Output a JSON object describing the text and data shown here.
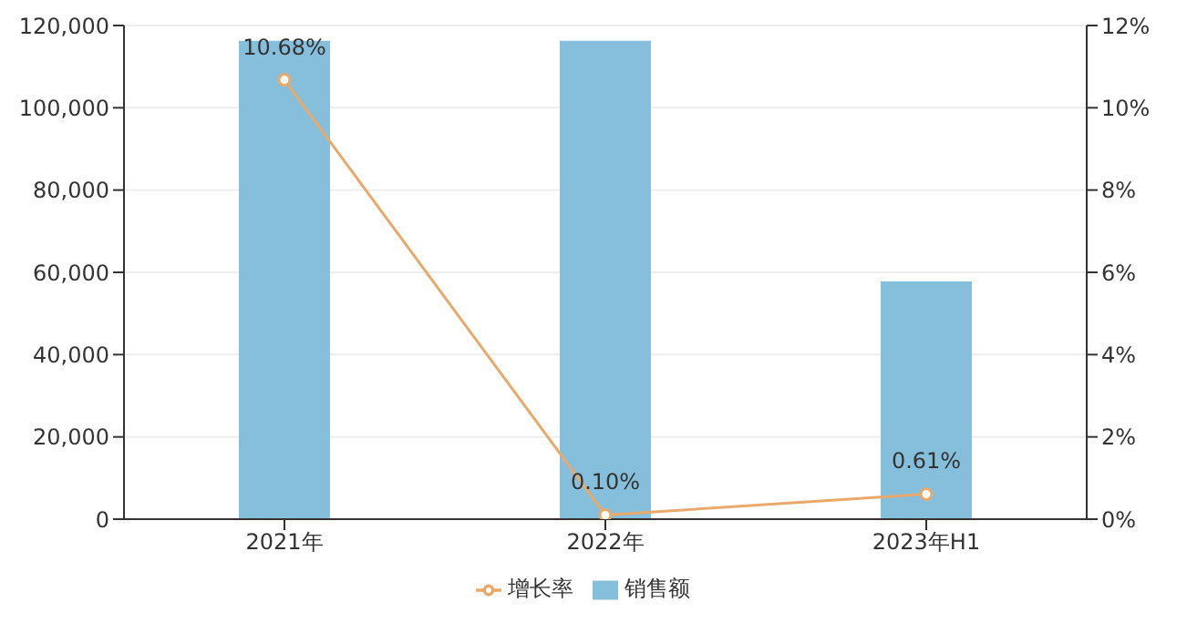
{
  "chart_data": {
    "type": "bar",
    "categories": [
      "2021年",
      "2022年",
      "2023年H1"
    ],
    "series": [
      {
        "name": "销售额",
        "color": "#86bfdc",
        "values": [
          116300,
          116300,
          57800
        ]
      },
      {
        "name": "增长率",
        "type": "line",
        "axis": "y2",
        "color": "#e8a96a",
        "values": [
          10.68,
          0.1,
          0.61
        ],
        "value_labels": [
          "10.68%",
          "0.10%",
          "0.61%"
        ]
      }
    ],
    "ylim": [
      0,
      120000
    ],
    "yticks": [
      {
        "value": 0,
        "label": "0"
      },
      {
        "value": 20000,
        "label": "20,000"
      },
      {
        "value": 40000,
        "label": "40,000"
      },
      {
        "value": 60000,
        "label": "60,000"
      },
      {
        "value": 80000,
        "label": "80,000"
      },
      {
        "value": 100000,
        "label": "100,000"
      },
      {
        "value": 120000,
        "label": "120,000"
      }
    ],
    "y2lim": [
      0,
      12
    ],
    "y2ticks": [
      {
        "value": 0,
        "label": "0%"
      },
      {
        "value": 2,
        "label": "2%"
      },
      {
        "value": 4,
        "label": "4%"
      },
      {
        "value": 6,
        "label": "6%"
      },
      {
        "value": 8,
        "label": "8%"
      },
      {
        "value": 10,
        "label": "10%"
      },
      {
        "value": 12,
        "label": "12%"
      }
    ],
    "grid": "y",
    "legend": "bottom",
    "marker": "circle"
  }
}
